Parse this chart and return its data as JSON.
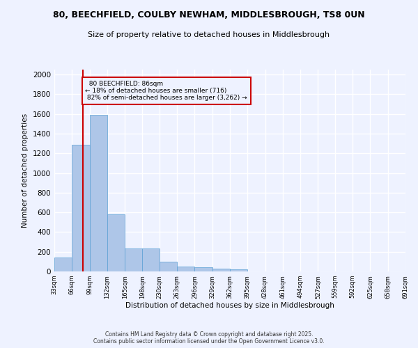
{
  "title_line1": "80, BEECHFIELD, COULBY NEWHAM, MIDDLESBROUGH, TS8 0UN",
  "title_line2": "Size of property relative to detached houses in Middlesbrough",
  "xlabel": "Distribution of detached houses by size in Middlesbrough",
  "ylabel": "Number of detached properties",
  "bin_edges": [
    33,
    66,
    99,
    132,
    165,
    198,
    230,
    263,
    296,
    329,
    362,
    395,
    428,
    461,
    494,
    527,
    559,
    592,
    625,
    658,
    691
  ],
  "bar_heights": [
    140,
    1290,
    1590,
    580,
    230,
    230,
    100,
    50,
    45,
    25,
    20,
    0,
    0,
    0,
    0,
    0,
    0,
    0,
    0,
    0
  ],
  "bar_color": "#aec6e8",
  "bar_edge_color": "#5a9fd4",
  "property_size": 86,
  "property_label": "80 BEECHFIELD: 86sqm",
  "pct_smaller": 18,
  "n_smaller": 716,
  "pct_larger_semi": 82,
  "n_larger_semi": 3262,
  "vline_color": "#cc0000",
  "ylim": [
    0,
    2050
  ],
  "yticks": [
    0,
    200,
    400,
    600,
    800,
    1000,
    1200,
    1400,
    1600,
    1800,
    2000
  ],
  "bg_color": "#eef2ff",
  "grid_color": "#ffffff",
  "footer_line1": "Contains HM Land Registry data © Crown copyright and database right 2025.",
  "footer_line2": "Contains public sector information licensed under the Open Government Licence v3.0."
}
